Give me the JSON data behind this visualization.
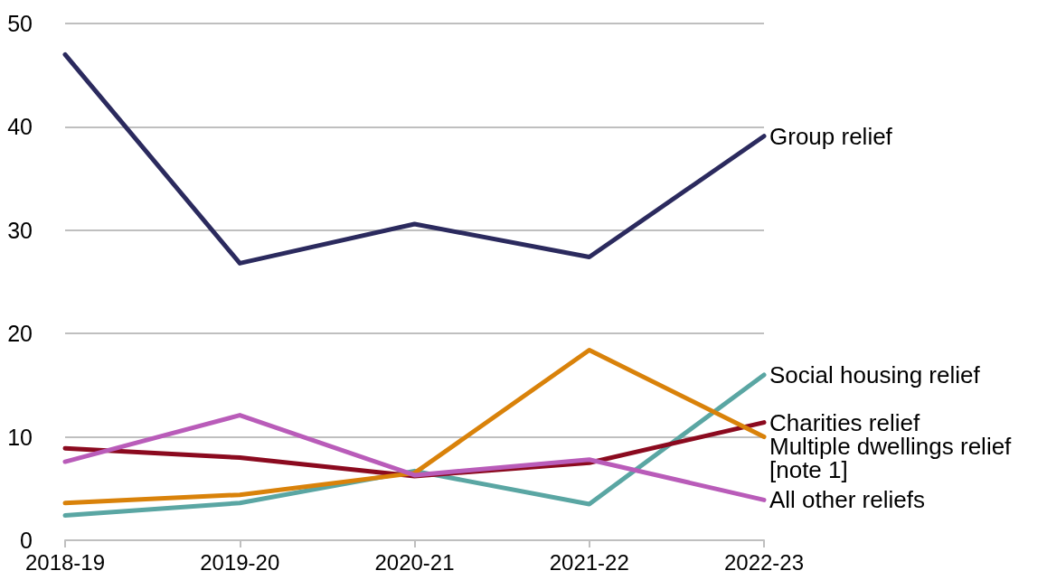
{
  "chart_data": {
    "type": "line",
    "categories": [
      "2018-19",
      "2019-20",
      "2020-21",
      "2021-22",
      "2022-23"
    ],
    "series": [
      {
        "name": "Group relief",
        "color": "#2b2a5e",
        "values": [
          47.0,
          26.8,
          30.6,
          27.4,
          39.1
        ]
      },
      {
        "name": "Social housing relief",
        "color": "#5aa6a3",
        "values": [
          2.4,
          3.6,
          6.7,
          3.5,
          16.0
        ]
      },
      {
        "name": "Charities relief",
        "color": "#8b0a1f",
        "values": [
          8.9,
          8.0,
          6.2,
          7.5,
          11.4
        ]
      },
      {
        "name": "Multiple dwellings relief [note 1]",
        "color": "#d9820a",
        "values": [
          3.6,
          4.4,
          6.5,
          18.4,
          10.0
        ]
      },
      {
        "name": "All other reliefs",
        "color": "#b95cb9",
        "values": [
          7.6,
          12.1,
          6.3,
          7.8,
          3.9
        ]
      }
    ],
    "ylim": [
      0,
      50
    ],
    "yticks": [
      0,
      10,
      20,
      30,
      40,
      50
    ],
    "grid": "y",
    "legend": false,
    "marker": "none",
    "line_style": "solid"
  }
}
